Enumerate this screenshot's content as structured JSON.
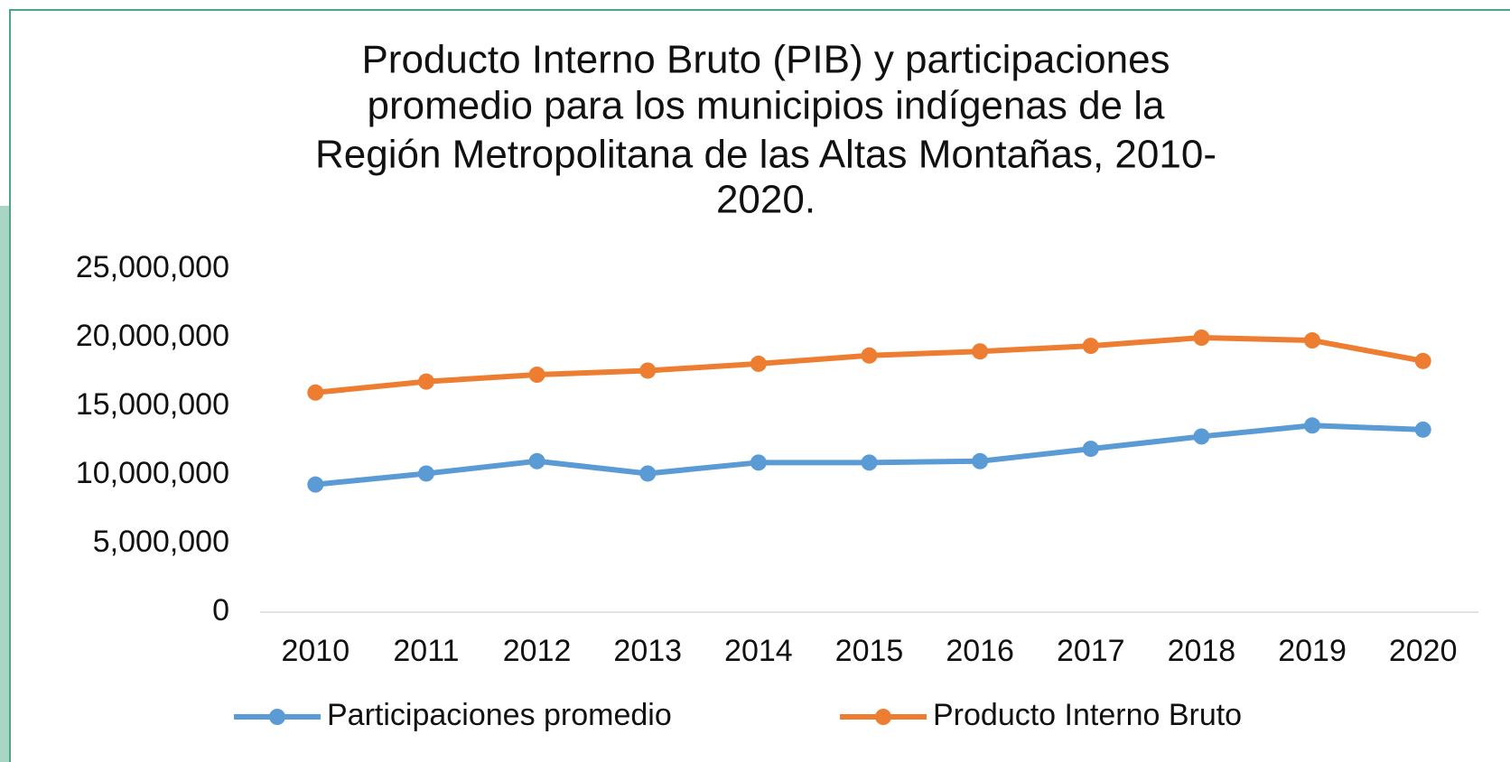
{
  "chart_data": {
    "type": "line",
    "title": [
      "Producto Interno  Bruto (PIB) y participaciones",
      "promedio para los municipios indígenas de la",
      "Región Metropolitana de las Altas Montañas, 2010-",
      "2020."
    ],
    "categories": [
      "2010",
      "2011",
      "2012",
      "2013",
      "2014",
      "2015",
      "2016",
      "2017",
      "2018",
      "2019",
      "2020"
    ],
    "series": [
      {
        "name": "Participaciones promedio",
        "color": "#5b9bd5",
        "values": [
          9300000,
          10100000,
          11000000,
          10100000,
          10900000,
          10900000,
          11000000,
          11900000,
          12800000,
          13600000,
          13300000
        ]
      },
      {
        "name": "Producto Interno Bruto",
        "color": "#ed7d31",
        "values": [
          16000000,
          16800000,
          17300000,
          17600000,
          18100000,
          18700000,
          19000000,
          19400000,
          20000000,
          19800000,
          18300000
        ]
      }
    ],
    "ylim": [
      0,
      25000000
    ],
    "yticks": [
      0,
      {
        "value": 5000000,
        "label": "5,000,000"
      },
      {
        "value": 10000000,
        "label": "10,000,000"
      },
      {
        "value": 15000000,
        "label": "15,000,000"
      },
      {
        "value": 20000000,
        "label": "20,000,000"
      },
      {
        "value": 25000000,
        "label": "25,000,000"
      }
    ],
    "legend": "bottom"
  }
}
